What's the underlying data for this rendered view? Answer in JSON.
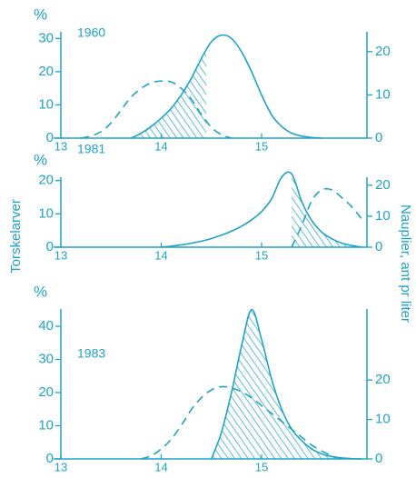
{
  "left_label": "Torskelarver",
  "right_label": "Nauplier, ant pr liter",
  "chart_data": [
    {
      "type": "line",
      "title": "1960",
      "y_label": "%",
      "color": "#1ea3c6",
      "x": [
        13.0,
        13.1,
        13.2,
        13.3,
        13.4,
        13.5,
        13.6,
        13.7,
        13.8,
        13.9,
        14.0,
        14.1,
        14.2,
        14.3,
        14.4,
        14.5,
        14.6,
        14.7,
        14.8,
        14.9,
        15.0,
        15.1,
        15.2,
        15.3,
        15.4,
        15.5,
        15.6,
        15.7,
        15.8,
        15.9,
        16.0
      ],
      "xlim": [
        13,
        16.05
      ],
      "xticks": [
        13,
        14,
        15
      ],
      "ylim": [
        0,
        32
      ],
      "yticks": [
        0,
        10,
        20,
        30
      ],
      "y2lim": [
        0,
        24.6
      ],
      "y2ticks": [
        0,
        10,
        20
      ],
      "shaded_xrange": [
        13.75,
        14.45
      ],
      "series": [
        {
          "dashed": false,
          "values": [
            null,
            null,
            null,
            null,
            null,
            null,
            null,
            0,
            1.5,
            3.5,
            6,
            9,
            13,
            18,
            24,
            29,
            31,
            30,
            26,
            20,
            13,
            7,
            3.5,
            1.5,
            0.6,
            0.2,
            0,
            null,
            null,
            null,
            null
          ]
        },
        {
          "dashed": true,
          "axis": "y2",
          "values": [
            null,
            null,
            0,
            0.5,
            1.5,
            3.5,
            6.5,
            9.5,
            11.5,
            12.8,
            13.2,
            13,
            11.5,
            9,
            5.5,
            2.5,
            0.8,
            0,
            null,
            null,
            null,
            null,
            null,
            null,
            null,
            null,
            null,
            null,
            null,
            null,
            null
          ]
        }
      ]
    },
    {
      "type": "line",
      "title": "1981",
      "y_label": "%",
      "color": "#1ea3c6",
      "x": [
        13.0,
        13.1,
        13.2,
        13.3,
        13.4,
        13.5,
        13.6,
        13.7,
        13.8,
        13.9,
        14.0,
        14.1,
        14.2,
        14.3,
        14.4,
        14.5,
        14.6,
        14.7,
        14.8,
        14.9,
        15.0,
        15.1,
        15.2,
        15.3,
        15.4,
        15.5,
        15.6,
        15.7,
        15.8,
        15.9,
        16.0
      ],
      "xlim": [
        13,
        16.05
      ],
      "xticks": [
        13,
        14,
        15
      ],
      "ylim": [
        0,
        21
      ],
      "yticks": [
        0,
        10,
        20
      ],
      "y2lim": [
        0,
        22.6
      ],
      "y2ticks": [
        0,
        10,
        20
      ],
      "shaded_xrange": [
        15.3,
        16.0
      ],
      "series": [
        {
          "dashed": false,
          "values": [
            null,
            null,
            null,
            null,
            null,
            null,
            null,
            null,
            null,
            null,
            0,
            0.3,
            0.7,
            1.2,
            1.8,
            2.6,
            3.6,
            4.8,
            6.3,
            8.2,
            10.7,
            14.5,
            21,
            22,
            13.7,
            8,
            4.5,
            2.5,
            1.2,
            0.5,
            0
          ]
        },
        {
          "dashed": true,
          "axis": "y2",
          "values": [
            null,
            null,
            null,
            null,
            null,
            null,
            null,
            null,
            null,
            null,
            null,
            null,
            null,
            null,
            null,
            null,
            null,
            null,
            null,
            null,
            null,
            null,
            null,
            0,
            7,
            15,
            18.5,
            18.5,
            16,
            13,
            9
          ]
        }
      ]
    },
    {
      "type": "line",
      "title": "1983",
      "y_label": "%",
      "color": "#1ea3c6",
      "x": [
        13.0,
        13.1,
        13.2,
        13.3,
        13.4,
        13.5,
        13.6,
        13.7,
        13.8,
        13.9,
        14.0,
        14.1,
        14.2,
        14.3,
        14.4,
        14.5,
        14.6,
        14.7,
        14.8,
        14.9,
        15.0,
        15.1,
        15.2,
        15.3,
        15.4,
        15.5,
        15.6,
        15.7,
        15.8,
        15.9,
        16.0
      ],
      "xlim": [
        13,
        16.05
      ],
      "xticks": [
        13,
        14,
        15
      ],
      "ylim": [
        0,
        45.2
      ],
      "yticks": [
        0,
        10,
        20,
        30,
        40
      ],
      "y2lim": [
        0,
        38
      ],
      "y2ticks": [
        0,
        10,
        20
      ],
      "shaded_xrange": [
        14.5,
        15.75
      ],
      "series": [
        {
          "dashed": false,
          "values": [
            null,
            null,
            null,
            null,
            null,
            null,
            null,
            null,
            null,
            null,
            null,
            null,
            null,
            null,
            null,
            0,
            8,
            20,
            34,
            45,
            36,
            24,
            15,
            9,
            5.5,
            3,
            1.5,
            0.7,
            0.3,
            0.1,
            0
          ]
        },
        {
          "dashed": true,
          "axis": "y2",
          "values": [
            null,
            null,
            null,
            null,
            null,
            null,
            null,
            null,
            0,
            0.8,
            2.5,
            5,
            8.5,
            12.5,
            15.5,
            17.5,
            18.3,
            18,
            17,
            15.5,
            13.5,
            11.5,
            9.5,
            7.5,
            5.5,
            3.5,
            2,
            0.8,
            0,
            null,
            null
          ]
        }
      ]
    }
  ]
}
